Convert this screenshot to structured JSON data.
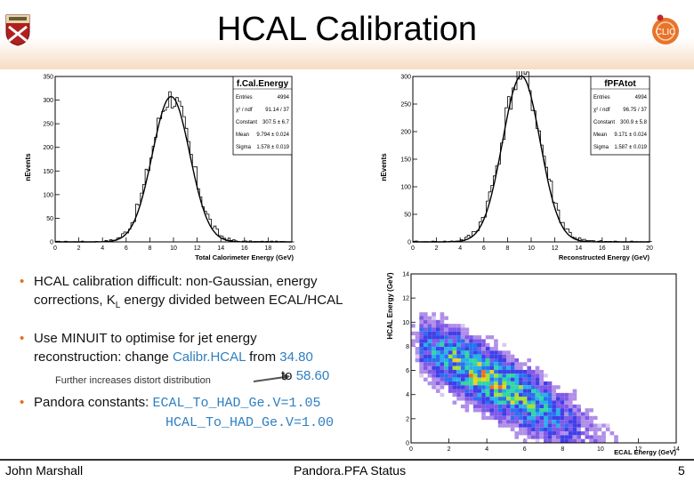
{
  "slide": {
    "title": "HCAL Calibration",
    "logo_text": "CLIC"
  },
  "plots": {
    "left": {
      "box_title": "f.Cal.Energy",
      "xlabel": "Total Calorimeter Energy (GeV)",
      "ylabel": "nEvents",
      "yticks": [
        "350",
        "300",
        "250",
        "200",
        "150",
        "100",
        "50",
        "0"
      ],
      "xticks": [
        "0",
        "2",
        "4",
        "6",
        "8",
        "10",
        "12",
        "14",
        "16",
        "18",
        "20"
      ],
      "stats": [
        {
          "k": "Entries",
          "v": "4994"
        },
        {
          "k": "χ² / ndf",
          "v": "91.14 / 37"
        },
        {
          "k": "Constant",
          "v": "307.5 ± 6.7"
        },
        {
          "k": "Mean",
          "v": "9.794 ± 0.024"
        },
        {
          "k": "Sigma",
          "v": "1.578 ± 0.019"
        }
      ]
    },
    "right": {
      "box_title": "fPFAtot",
      "xlabel": "Reconstructed Energy (GeV)",
      "ylabel": "nEvents",
      "yticks": [
        "300",
        "250",
        "200",
        "150",
        "100",
        "50",
        "0"
      ],
      "xticks": [
        "0",
        "2",
        "4",
        "6",
        "8",
        "10",
        "12",
        "14",
        "16",
        "18",
        "20"
      ],
      "stats": [
        {
          "k": "Entries",
          "v": "4994"
        },
        {
          "k": "χ² / ndf",
          "v": "96.75 / 37"
        },
        {
          "k": "Constant",
          "v": "300.9 ± 5.8"
        },
        {
          "k": "Mean",
          "v": "9.171 ± 0.024"
        },
        {
          "k": "Sigma",
          "v": "1.587 ± 0.019"
        }
      ]
    },
    "scatter": {
      "xlabel": "ECAL Energy (GeV)",
      "ylabel": "HCAL Energy (GeV)",
      "yticks": [
        "14",
        "12",
        "10",
        "8",
        "6",
        "4",
        "2",
        "0"
      ],
      "xticks": [
        "0",
        "2",
        "4",
        "6",
        "8",
        "10",
        "12",
        "14"
      ]
    }
  },
  "bullets": {
    "b1_line1": "HCAL calibration difficult: non-Gaussian, energy",
    "b1_line2a": "corrections, K",
    "b1_sub": "L",
    "b1_line2b": " energy divided between ECAL/HCAL",
    "b2_line1": "Use MINUIT to optimise for jet energy",
    "b2_line2a": "reconstruction: change ",
    "b2_calib": "Calibr.HCAL",
    "b2_from": " from ",
    "b2_v1": "34.80",
    "b2_note": "Further increases distort distribution",
    "b2_to": "to ",
    "b2_v2": "58.60",
    "b3_label": "Pandora constants:",
    "b3_c1": "ECAL_To_HAD_Ge.V=1.05",
    "b3_c2": "HCAL_To_HAD_Ge.V=1.00"
  },
  "footer": {
    "author": "John Marshall",
    "center": "Pandora.PFA Status",
    "page": "5"
  },
  "colors": {
    "accent": "#e07020",
    "highlight": "#2e7fc0",
    "header_fade": "#f7dcc4"
  }
}
